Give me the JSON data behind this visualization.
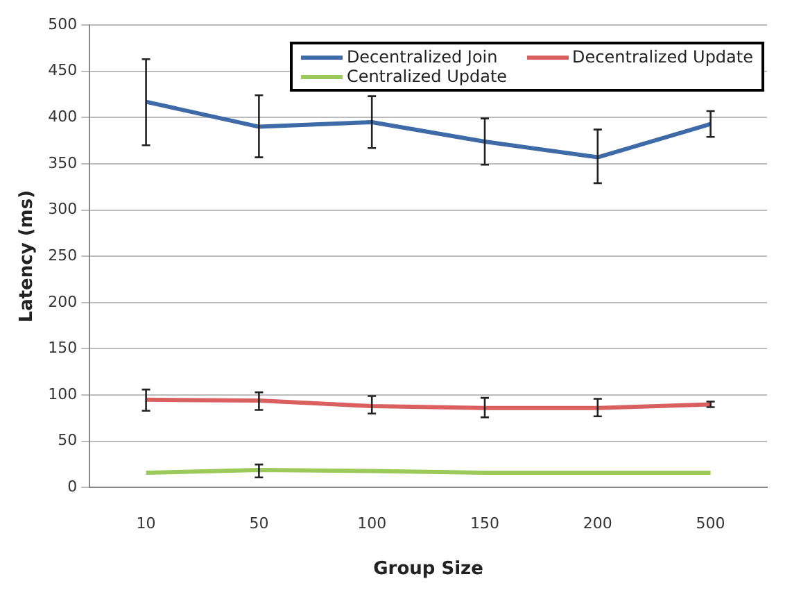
{
  "chart_data": {
    "type": "line",
    "xlabel": "Group Size",
    "ylabel": "Latency (ms)",
    "categories": [
      "10",
      "50",
      "100",
      "150",
      "200",
      "500"
    ],
    "series": [
      {
        "name": "Decentralized Join",
        "color": "#3f6aa8",
        "values": [
          417,
          390,
          395,
          374,
          357,
          393
        ],
        "errors": [
          [
            370,
            463
          ],
          [
            357,
            424
          ],
          [
            367,
            423
          ],
          [
            349,
            399
          ],
          [
            329,
            387
          ],
          [
            379,
            407
          ]
        ]
      },
      {
        "name": "Decentralized Update",
        "color": "#d9605f",
        "values": [
          95,
          94,
          88,
          86,
          86,
          90
        ],
        "errors": [
          [
            83,
            106
          ],
          [
            84,
            103
          ],
          [
            80,
            99
          ],
          [
            76,
            97
          ],
          [
            77,
            96
          ],
          [
            87,
            93
          ]
        ]
      },
      {
        "name": "Centralized Update",
        "color": "#9bc95a",
        "values": [
          16,
          19,
          18,
          16,
          16,
          16
        ],
        "errors": [
          null,
          [
            11,
            25
          ],
          null,
          null,
          null,
          null
        ]
      }
    ],
    "ylim": [
      0,
      500
    ],
    "yticks": [
      0,
      50,
      100,
      150,
      200,
      250,
      300,
      350,
      400,
      450,
      500
    ],
    "grid": "y",
    "legend": "top right",
    "marker": "none",
    "line_style": "solid"
  }
}
